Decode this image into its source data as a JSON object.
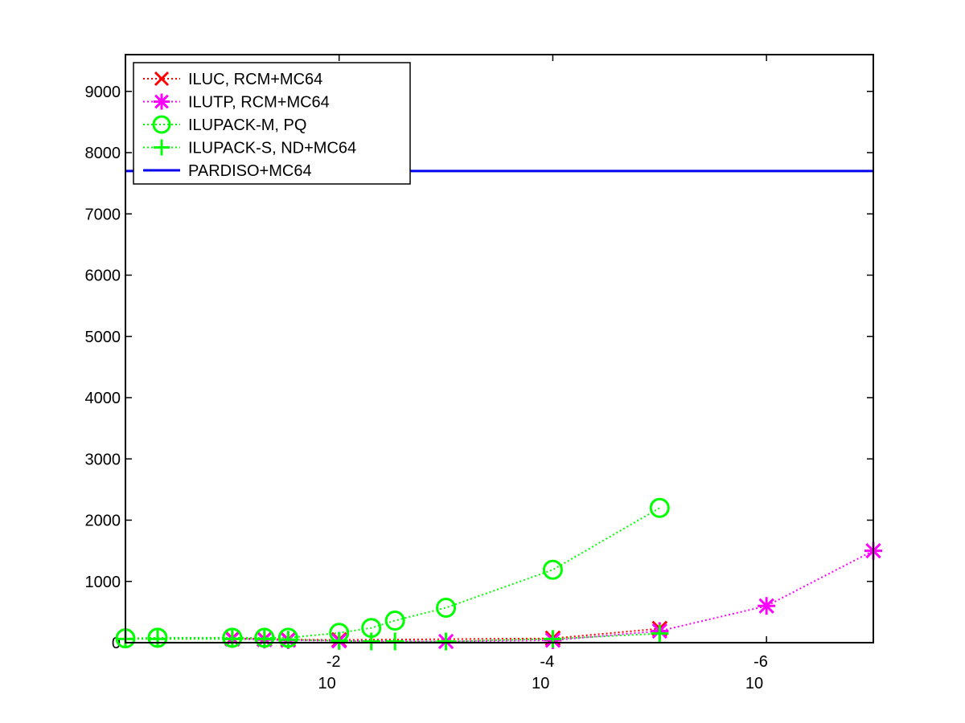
{
  "chart_data": {
    "type": "line",
    "title": "",
    "xlabel": "",
    "ylabel": "",
    "x_scale": "log",
    "x_reversed": true,
    "xlim": [
      1,
      1e-07
    ],
    "ylim": [
      0,
      9600
    ],
    "grid": false,
    "legend_position": "top-left",
    "y_ticks": [
      0,
      1000,
      2000,
      3000,
      4000,
      5000,
      6000,
      7000,
      8000,
      9000
    ],
    "y_tick_labels": [
      "0",
      "1000",
      "2000",
      "3000",
      "4000",
      "5000",
      "6000",
      "7000",
      "8000",
      "9000"
    ],
    "x_ticks": [
      0.01,
      0.0001,
      1e-06
    ],
    "x_tick_labels": [
      {
        "base": "10",
        "exponent": "-2"
      },
      {
        "base": "10",
        "exponent": "-4"
      },
      {
        "base": "10",
        "exponent": "-6"
      }
    ],
    "series": [
      {
        "name": "ILUC, RCM+MC64",
        "color": "#ff0000",
        "marker": "x",
        "line_style": "dotted",
        "x": [
          0.1,
          0.05,
          0.03,
          0.01,
          0.0001,
          1e-05
        ],
        "y": [
          70,
          60,
          50,
          45,
          70,
          230
        ]
      },
      {
        "name": "ILUTP, RCM+MC64",
        "color": "#ff00ff",
        "marker": "asterisk",
        "line_style": "dotted",
        "x": [
          0.1,
          0.05,
          0.03,
          0.01,
          0.001,
          0.0001,
          1e-05,
          1e-06,
          1e-07
        ],
        "y": [
          60,
          50,
          40,
          30,
          20,
          40,
          190,
          600,
          1500
        ]
      },
      {
        "name": "ILUPACK-M, PQ",
        "color": "#00ff00",
        "marker": "circle",
        "line_style": "dotted",
        "x": [
          1,
          0.5,
          0.1,
          0.05,
          0.03,
          0.01,
          0.005,
          0.003,
          0.001,
          0.0001,
          1e-05
        ],
        "y": [
          70,
          80,
          80,
          80,
          80,
          160,
          240,
          360,
          570,
          1190,
          2200
        ]
      },
      {
        "name": "ILUPACK-S, ND+MC64",
        "color": "#00ff00",
        "marker": "plus",
        "line_style": "dotted",
        "x": [
          1,
          0.5,
          0.1,
          0.05,
          0.03,
          0.01,
          0.005,
          0.003,
          0.001,
          0.0001,
          1e-05
        ],
        "y": [
          60,
          60,
          60,
          60,
          50,
          30,
          20,
          20,
          20,
          60,
          150
        ]
      },
      {
        "name": "PARDISO+MC64",
        "color": "#0000ee",
        "marker": "none",
        "line_style": "solid",
        "x": [
          1,
          1e-07
        ],
        "y": [
          7700,
          7700
        ]
      }
    ]
  }
}
